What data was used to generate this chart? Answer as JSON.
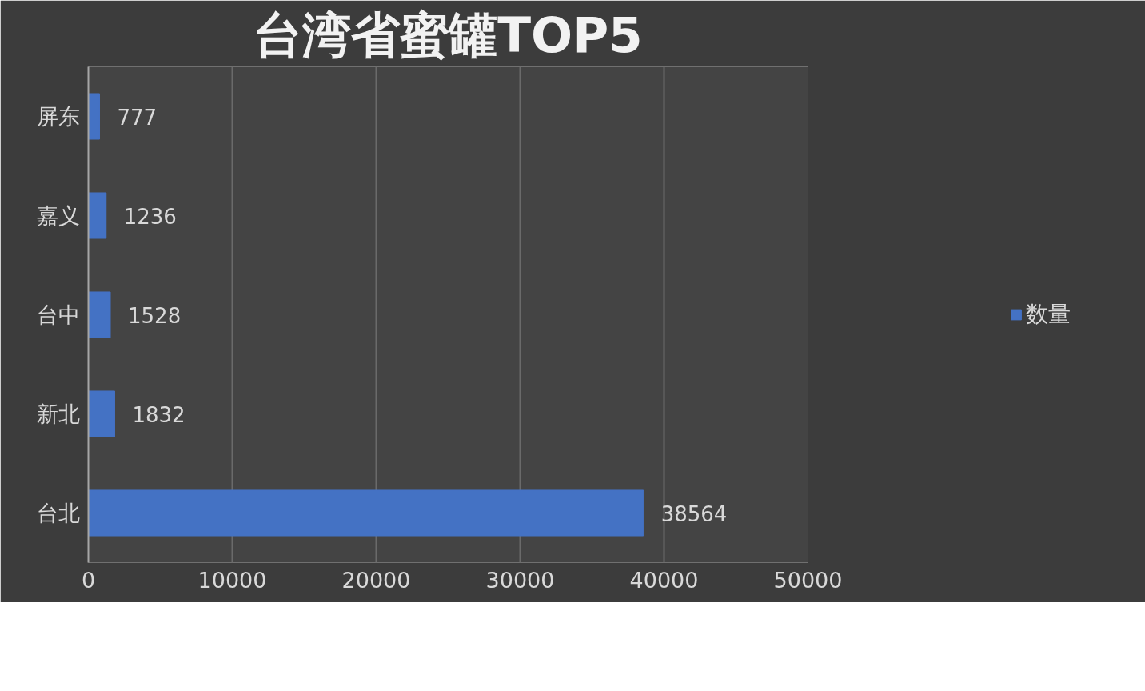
{
  "chart_data": {
    "type": "bar",
    "orientation": "horizontal",
    "title": "台湾省蜜罐TOP5",
    "categories": [
      "屏东",
      "嘉义",
      "台中",
      "新北",
      "台北"
    ],
    "series": [
      {
        "name": "数量",
        "color": "#4472c4",
        "values": [
          777,
          1236,
          1528,
          1832,
          38564
        ]
      }
    ],
    "xlim": [
      0,
      50000
    ],
    "xticks": [
      0,
      10000,
      20000,
      30000,
      40000,
      50000
    ],
    "grid": "x",
    "legend": "right",
    "data_labels": true
  }
}
